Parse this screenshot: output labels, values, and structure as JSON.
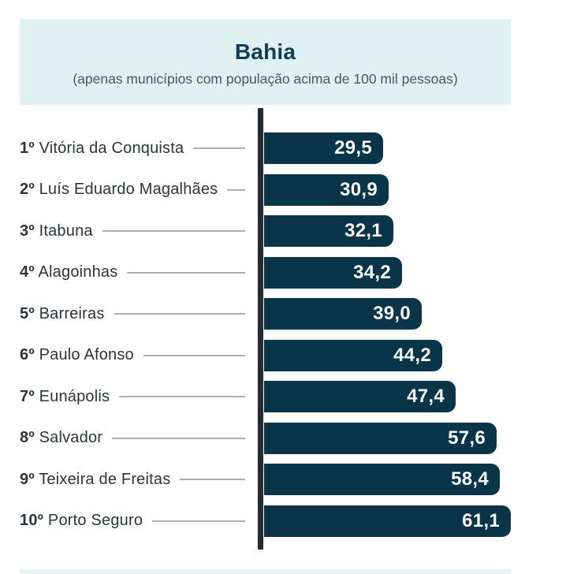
{
  "header": {
    "title": "Bahia",
    "subtitle": "(apenas municípios com população acima de 100 mil pessoas)"
  },
  "chart_data": {
    "type": "bar",
    "orientation": "horizontal",
    "title": "Bahia",
    "subtitle": "(apenas municípios com população acima de 100 mil pessoas)",
    "categories": [
      "Vitória da Conquista",
      "Luís Eduardo Magalhães",
      "Itabuna",
      "Alagoinhas",
      "Barreiras",
      "Paulo Afonso",
      "Eunápolis",
      "Salvador",
      "Teixeira de Freitas",
      "Porto Seguro"
    ],
    "values": [
      29.5,
      30.9,
      32.1,
      34.2,
      39.0,
      44.2,
      47.4,
      57.6,
      58.4,
      61.1
    ],
    "xlim": [
      0,
      61.1
    ],
    "grid": false,
    "legend": false,
    "value_format": "decimal-comma",
    "rows": [
      {
        "rank": "1º",
        "name": "Vitória da Conquista",
        "value": 29.5,
        "value_label": "29,5"
      },
      {
        "rank": "2º",
        "name": "Luís Eduardo Magalhães",
        "value": 30.9,
        "value_label": "30,9"
      },
      {
        "rank": "3º",
        "name": "Itabuna",
        "value": 32.1,
        "value_label": "32,1"
      },
      {
        "rank": "4º",
        "name": "Alagoinhas",
        "value": 34.2,
        "value_label": "34,2"
      },
      {
        "rank": "5º",
        "name": "Barreiras",
        "value": 39.0,
        "value_label": "39,0"
      },
      {
        "rank": "6º",
        "name": "Paulo Afonso",
        "value": 44.2,
        "value_label": "44,2"
      },
      {
        "rank": "7º",
        "name": "Eunápolis",
        "value": 47.4,
        "value_label": "47,4"
      },
      {
        "rank": "8º",
        "name": "Salvador",
        "value": 57.6,
        "value_label": "57,6"
      },
      {
        "rank": "9º",
        "name": "Teixeira de Freitas",
        "value": 58.4,
        "value_label": "58,4"
      },
      {
        "rank": "10º",
        "name": "Porto Seguro",
        "value": 61.1,
        "value_label": "61,1"
      }
    ]
  },
  "colors": {
    "header_bg": "#e0f1f2",
    "footer_bg": "#e9f5f5",
    "bar": "#0a3447",
    "axis": "#222b37",
    "title_text": "#113c52",
    "subtitle_text": "#41586a",
    "label_text": "#2c343c",
    "leader_line": "#a9b1b7",
    "value_text": "#f7fafa",
    "background": "#ffffff"
  }
}
